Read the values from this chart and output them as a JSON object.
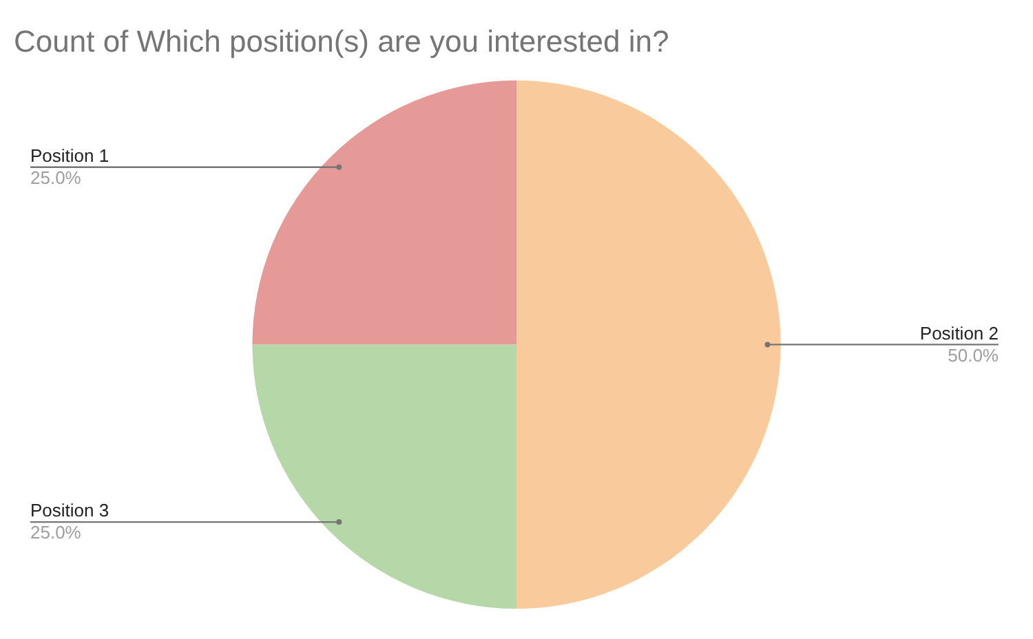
{
  "chart_data": {
    "type": "pie",
    "title": "Count of Which position(s) are you interested in?",
    "categories": [
      "Position 1",
      "Position 2",
      "Position 3"
    ],
    "values": [
      25,
      50,
      25
    ],
    "value_labels": [
      "25.0%",
      "50.0%",
      "25.0%"
    ],
    "colors": [
      "#e69a98",
      "#f9cb9c",
      "#b6d7a8"
    ],
    "legend": false
  }
}
